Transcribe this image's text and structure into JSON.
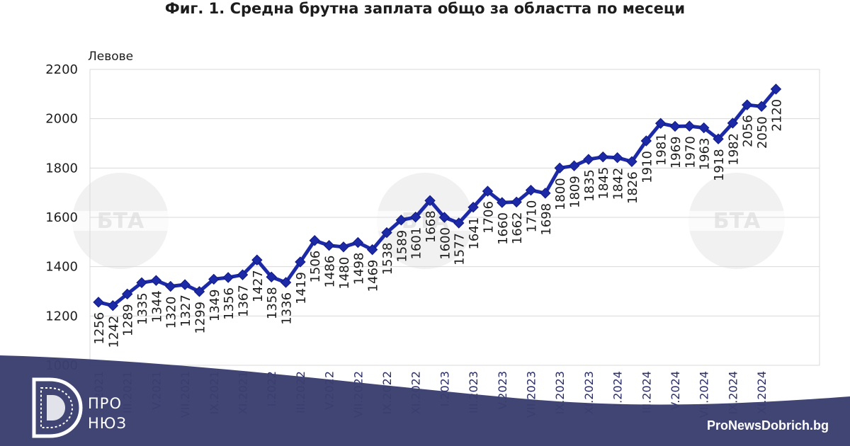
{
  "chart_data": {
    "type": "line",
    "title": "Фиг. 1. Средна брутна заплата общо за областта по месеци",
    "ylabel": "Левове",
    "ylim": [
      1000,
      2200
    ],
    "yticks": [
      1000,
      1200,
      1400,
      1600,
      1800,
      2000,
      2200
    ],
    "grid": true,
    "x_labels": [
      "I.2021",
      "",
      "III.2021",
      "",
      "V.2021",
      "",
      "VII.2021",
      "",
      "IX.2021",
      "",
      "XI.2021",
      "",
      "I.2022",
      "",
      "III.2022",
      "",
      "V.2022",
      "",
      "VII.2022",
      "",
      "IX.2022",
      "",
      "XI.2022",
      "",
      "I.2023",
      "",
      "III.2023",
      "",
      "V.2023",
      "",
      "VII.2023",
      "",
      "IX.2023",
      "",
      "XI.2023",
      "",
      "I.2024",
      "",
      "III.2024",
      "",
      "V.2024",
      "",
      "VII.2024",
      "",
      "IX.2024",
      "",
      "XI.2024",
      ""
    ],
    "series": [
      {
        "values": [
          1256,
          1242,
          1289,
          1335,
          1344,
          1320,
          1327,
          1299,
          1349,
          1356,
          1367,
          1427,
          1358,
          1336,
          1419,
          1506,
          1486,
          1480,
          1498,
          1469,
          1538,
          1589,
          1601,
          1668,
          1600,
          1577,
          1641,
          1706,
          1660,
          1662,
          1710,
          1698,
          1800,
          1809,
          1835,
          1845,
          1842,
          1826,
          1910,
          1981,
          1969,
          1970,
          1963,
          1918,
          1982,
          2056,
          2050,
          2120
        ],
        "labels": [
          "1256",
          "1242",
          "1289",
          "1335",
          "1344",
          "1320",
          "1327",
          "1299",
          "1349",
          "1356",
          "1367",
          "1427",
          "1358",
          "1336",
          "1419",
          "1506",
          "1486",
          "1480",
          "1498",
          "1469",
          "1538",
          "1589",
          "1601",
          "1668",
          "1600",
          "1577",
          "1641",
          "1706",
          "1660",
          "1662",
          "1710",
          "1698",
          "1800",
          "1809",
          "1835",
          "1845",
          "1842",
          "1826",
          "1910",
          "1981",
          "1969",
          "1970",
          "1963",
          "1918",
          "1982",
          "2056",
          "2050",
          "2120"
        ]
      }
    ]
  },
  "colors": {
    "line": "#1d2aa8",
    "marker": "#1d2aa8",
    "grid": "#d9d9d9",
    "banner": "#3b3f70",
    "watermark": "#e6e6e6"
  },
  "watermark_text": "БТА",
  "banner": {
    "logo_top": "ПРО",
    "logo_bottom": "НЮЗ",
    "website": "ProNewsDobrich.bg",
    "logo_icon": "pronews-d-logo-icon"
  }
}
